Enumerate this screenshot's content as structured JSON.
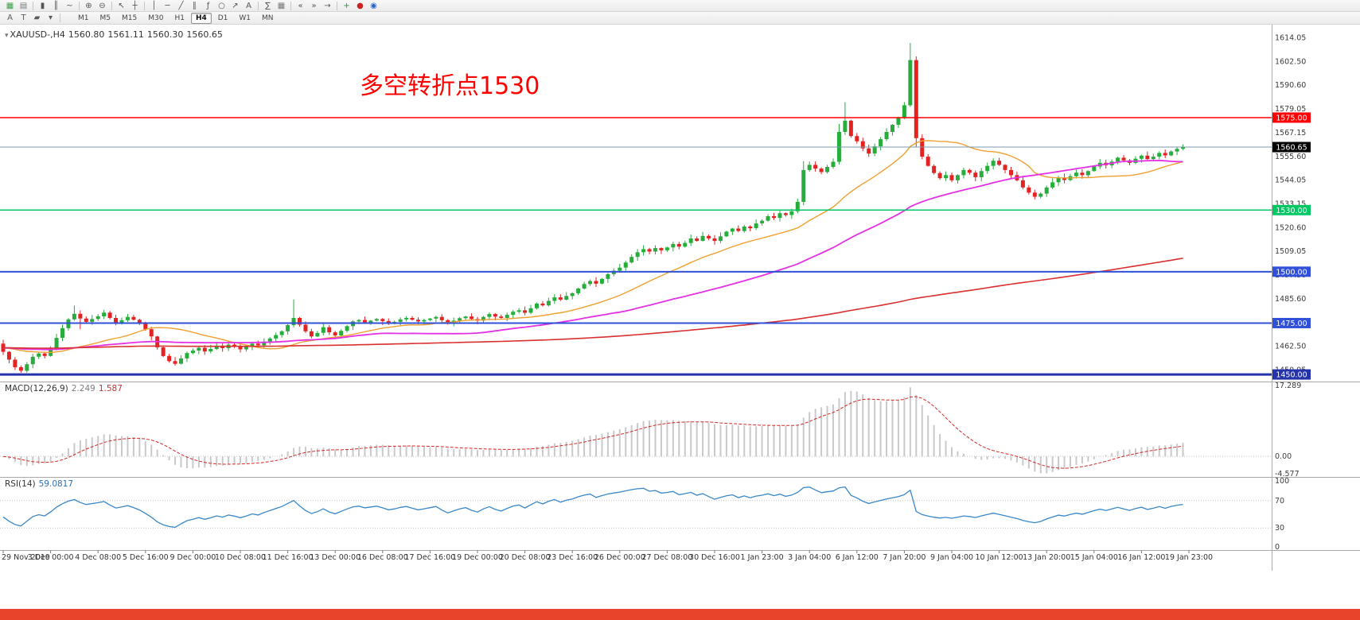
{
  "toolbar_primary": {
    "items": [
      {
        "t": "i",
        "name": "new-chart-icon",
        "g": "▦",
        "c": "#3f9e46"
      },
      {
        "t": "i",
        "name": "chart-window-icon",
        "g": "▤",
        "c": "#777777"
      },
      {
        "t": "s"
      },
      {
        "t": "i",
        "name": "candlestick-chart-icon",
        "g": "▮",
        "c": "#555555"
      },
      {
        "t": "i",
        "name": "bar-chart-icon",
        "g": "║",
        "c": "#555555"
      },
      {
        "t": "i",
        "name": "line-chart-icon",
        "g": "~",
        "c": "#555555"
      },
      {
        "t": "s"
      },
      {
        "t": "i",
        "name": "zoom-in-icon",
        "g": "⊕",
        "c": "#555555"
      },
      {
        "t": "i",
        "name": "zoom-out-icon",
        "g": "⊖",
        "c": "#555555"
      },
      {
        "t": "s"
      },
      {
        "t": "i",
        "name": "cursor-icon",
        "g": "↖",
        "c": "#555555"
      },
      {
        "t": "i",
        "name": "crosshair-icon",
        "g": "┼",
        "c": "#555555"
      },
      {
        "t": "s"
      },
      {
        "t": "i",
        "name": "vertical-line-icon",
        "g": "│",
        "c": "#555555"
      },
      {
        "t": "i",
        "name": "horizontal-line-icon",
        "g": "─",
        "c": "#555555"
      },
      {
        "t": "i",
        "name": "trendline-icon",
        "g": "╱",
        "c": "#555555"
      },
      {
        "t": "i",
        "name": "equidistant-channel-icon",
        "g": "∥",
        "c": "#555555"
      },
      {
        "t": "i",
        "name": "fibonacci-icon",
        "g": "ƒ",
        "c": "#555555"
      },
      {
        "t": "i",
        "name": "shapes-icon",
        "g": "○",
        "c": "#555555"
      },
      {
        "t": "i",
        "name": "arrows-icon",
        "g": "↗",
        "c": "#555555"
      },
      {
        "t": "i",
        "name": "text-label-icon",
        "g": "A",
        "c": "#555555"
      },
      {
        "t": "s"
      },
      {
        "t": "i",
        "name": "indicators-icon",
        "g": "∑",
        "c": "#555555"
      },
      {
        "t": "i",
        "name": "grid-icon",
        "g": "▦",
        "c": "#777777"
      },
      {
        "t": "s"
      },
      {
        "t": "i",
        "name": "scroll-to-start-icon",
        "g": "«",
        "c": "#555555"
      },
      {
        "t": "i",
        "name": "scroll-to-end-icon",
        "g": "»",
        "c": "#555555"
      },
      {
        "t": "i",
        "name": "chart-shift-icon",
        "g": "→",
        "c": "#555555"
      },
      {
        "t": "s"
      },
      {
        "t": "i",
        "name": "add-indicator-icon",
        "g": "+",
        "c": "#1e9e3e"
      },
      {
        "t": "i",
        "name": "record-icon",
        "g": "●",
        "c": "#cc2222"
      },
      {
        "t": "i",
        "name": "clock-icon",
        "g": "◉",
        "c": "#2a62c8"
      }
    ]
  },
  "toolbar_secondary": {
    "tools": [
      {
        "name": "arrow-style-icon",
        "g": "A"
      },
      {
        "name": "text-tool-icon",
        "g": "T"
      },
      {
        "name": "color-tool-icon",
        "g": "▰"
      },
      {
        "name": "dropdown-caret-icon",
        "g": "▾"
      }
    ],
    "timeframes": [
      "M1",
      "M5",
      "M15",
      "M30",
      "H1",
      "H4",
      "D1",
      "W1",
      "MN"
    ],
    "active_timeframe": "H4"
  },
  "quote_header": {
    "symbol": "XAUUSD-,H4",
    "open": "1560.80",
    "high": "1561.11",
    "low": "1560.30",
    "close": "1560.65"
  },
  "annotation": {
    "text": "多空转折点1530",
    "color": "#ff0000"
  },
  "price_scale": {
    "labels": [
      "1614.05",
      "1602.50",
      "1590.60",
      "1579.05",
      "1567.15",
      "1555.60",
      "1544.05",
      "1533.15",
      "1520.60",
      "1509.05",
      "1497.50",
      "1485.60",
      "1474.05",
      "1462.50",
      "1450.95"
    ]
  },
  "levels": [
    {
      "label": "1575.00",
      "value": 1575.0,
      "color": "#ff0000",
      "width": 1.5
    },
    {
      "label": "1530.00",
      "value": 1530.0,
      "color": "#00c763",
      "width": 1.5
    },
    {
      "label": "1500.00",
      "value": 1500.0,
      "color": "#3050d8",
      "width": 2
    },
    {
      "label": "1475.00",
      "value": 1475.0,
      "color": "#3050d8",
      "width": 2
    },
    {
      "label": "1450.00",
      "value": 1450.0,
      "color": "#2433aa",
      "width": 3
    }
  ],
  "bid": {
    "label": "1560.65",
    "value": 1560.65,
    "line_color": "#7e98ab",
    "badge_color": "#000000"
  },
  "chart_data": {
    "type": "candlestick",
    "symbol": "XAUUSD",
    "timeframe": "H4",
    "first_open": 1465.0,
    "up_color": "#27ad3c",
    "down_color": "#e32222",
    "prehistory_value": 1463.0,
    "closes": [
      1461.0,
      1457.2,
      1453.5,
      1451.8,
      1455.0,
      1458.6,
      1460.2,
      1459.0,
      1462.5,
      1467.8,
      1472.5,
      1476.8,
      1479.5,
      1477.2,
      1475.6,
      1477.0,
      1478.3,
      1480.1,
      1477.5,
      1475.2,
      1476.4,
      1478.0,
      1476.6,
      1474.8,
      1472.0,
      1468.5,
      1463.2,
      1459.0,
      1456.5,
      1455.2,
      1457.8,
      1460.4,
      1461.6,
      1463.0,
      1461.2,
      1462.4,
      1464.0,
      1462.8,
      1464.5,
      1463.6,
      1462.2,
      1463.4,
      1465.0,
      1464.2,
      1466.0,
      1467.5,
      1469.2,
      1471.0,
      1474.0,
      1477.5,
      1474.2,
      1471.0,
      1468.5,
      1470.2,
      1473.0,
      1470.5,
      1469.0,
      1471.2,
      1473.5,
      1475.8,
      1476.5,
      1475.4,
      1476.2,
      1477.0,
      1476.0,
      1474.8,
      1475.6,
      1476.8,
      1477.5,
      1476.6,
      1475.8,
      1476.5,
      1477.2,
      1478.0,
      1476.4,
      1475.0,
      1476.2,
      1477.4,
      1478.2,
      1477.0,
      1476.2,
      1478.0,
      1479.4,
      1478.2,
      1477.5,
      1479.0,
      1480.5,
      1481.2,
      1480.0,
      1482.2,
      1484.5,
      1483.6,
      1485.8,
      1487.5,
      1486.4,
      1488.2,
      1489.5,
      1491.8,
      1494.0,
      1495.5,
      1494.2,
      1496.5,
      1498.8,
      1500.5,
      1502.0,
      1504.5,
      1507.2,
      1509.5,
      1511.0,
      1509.8,
      1511.5,
      1510.4,
      1511.8,
      1513.5,
      1512.2,
      1514.0,
      1516.2,
      1515.0,
      1517.4,
      1516.2,
      1515.0,
      1517.2,
      1519.5,
      1521.0,
      1519.8,
      1522.0,
      1521.2,
      1523.5,
      1524.8,
      1527.0,
      1526.2,
      1528.5,
      1527.6,
      1529.4,
      1534.0,
      1549.5,
      1552.0,
      1550.2,
      1548.5,
      1551.0,
      1553.5,
      1568.0,
      1573.5,
      1566.0,
      1563.5,
      1560.0,
      1557.5,
      1561.0,
      1564.5,
      1568.0,
      1571.5,
      1575.0,
      1581.0,
      1603.0,
      1565.0,
      1556.0,
      1551.5,
      1548.0,
      1545.5,
      1547.0,
      1544.5,
      1547.0,
      1549.5,
      1548.2,
      1546.0,
      1549.0,
      1551.5,
      1554.0,
      1552.0,
      1549.5,
      1547.0,
      1544.5,
      1541.0,
      1538.5,
      1536.5,
      1538.0,
      1541.0,
      1543.5,
      1545.8,
      1544.6,
      1546.5,
      1548.2,
      1547.0,
      1549.0,
      1551.2,
      1553.0,
      1551.8,
      1553.6,
      1555.5,
      1554.2,
      1553.0,
      1555.0,
      1556.5,
      1554.8,
      1556.0,
      1557.8,
      1556.6,
      1558.5,
      1559.8,
      1560.65
    ],
    "wick_overrides": {
      "3": {
        "low": 1450.8
      },
      "12": {
        "high": 1483.5
      },
      "13": {
        "low": 1472.0
      },
      "49": {
        "high": 1486.5
      },
      "135": {
        "high": 1553.8
      },
      "141": {
        "high": 1572.0
      },
      "142": {
        "high": 1582.5
      },
      "153": {
        "high": 1611.3
      },
      "154": {
        "low": 1560.5
      },
      "174": {
        "low": 1535.2
      }
    },
    "moving_averages": [
      {
        "name": "ma-fast",
        "period": 21,
        "color": "#efa030",
        "width": 1.4
      },
      {
        "name": "ma-mid",
        "period": 55,
        "color": "#e531e5",
        "width": 1.8
      },
      {
        "name": "ma-slow",
        "period": 200,
        "color": "#d93030",
        "width": 1.6
      }
    ]
  },
  "macd_panel": {
    "label": "MACD(12,26,9)",
    "main_value": "2.249",
    "signal_value": "1.587",
    "fast": 12,
    "slow": 26,
    "signal": 9,
    "scale_labels": [
      "17.289",
      "0.00",
      "-4.577"
    ],
    "histogram_color": "#c9c9c9",
    "signal_color": "#cf2929"
  },
  "rsi_panel": {
    "label": "RSI(14)",
    "value": "59.0817",
    "period": 14,
    "scale_labels": [
      "100",
      "70",
      "30",
      "0"
    ],
    "levels": [
      70,
      30
    ],
    "line_color": "#3a87c8"
  },
  "time_axis": {
    "labels": [
      "29 Nov 2019",
      "3 Dec 00:00",
      "4 Dec 08:00",
      "5 Dec 16:00",
      "9 Dec 00:00",
      "10 Dec 08:00",
      "11 Dec 16:00",
      "13 Dec 00:00",
      "16 Dec 08:00",
      "17 Dec 16:00",
      "19 Dec 00:00",
      "20 Dec 08:00",
      "23 Dec 16:00",
      "26 Dec 00:00",
      "27 Dec 08:00",
      "30 Dec 16:00",
      "1 Jan 23:00",
      "3 Jan 04:00",
      "6 Jan 12:00",
      "7 Jan 20:00",
      "9 Jan 04:00",
      "10 Jan 12:00",
      "13 Jan 20:00",
      "15 Jan 04:00",
      "16 Jan 12:00",
      "19 Jan 23:00"
    ]
  },
  "bottom_strip_color": "#e8432b"
}
